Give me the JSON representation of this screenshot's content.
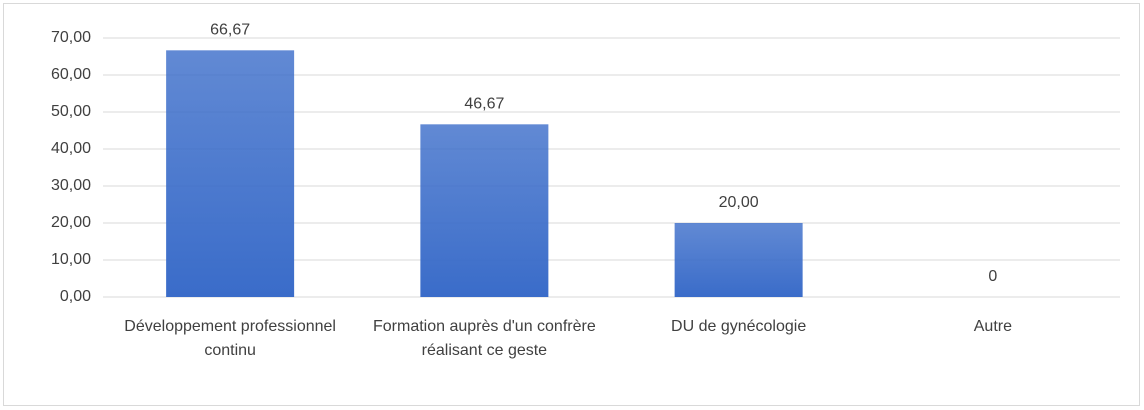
{
  "chart_data": {
    "type": "bar",
    "categories": [
      "Développement professionnel continu",
      "Formation auprès d'un confrère réalisant ce geste",
      "DU de gynécologie",
      "Autre"
    ],
    "values": [
      66.67,
      46.67,
      20,
      0
    ],
    "value_labels": [
      "66,67",
      "46,67",
      "20,00",
      "0"
    ],
    "color": "#3a6cc9",
    "ylim": [
      0,
      70
    ],
    "yticks": [
      {
        "value": 0,
        "label": "0,00"
      },
      {
        "value": 10,
        "label": "10,00"
      },
      {
        "value": 20,
        "label": "20,00"
      },
      {
        "value": 30,
        "label": "30,00"
      },
      {
        "value": 40,
        "label": "40,00"
      },
      {
        "value": 50,
        "label": "50,00"
      },
      {
        "value": 60,
        "label": "60,00"
      },
      {
        "value": 70,
        "label": "70,00"
      }
    ],
    "grid": true
  }
}
